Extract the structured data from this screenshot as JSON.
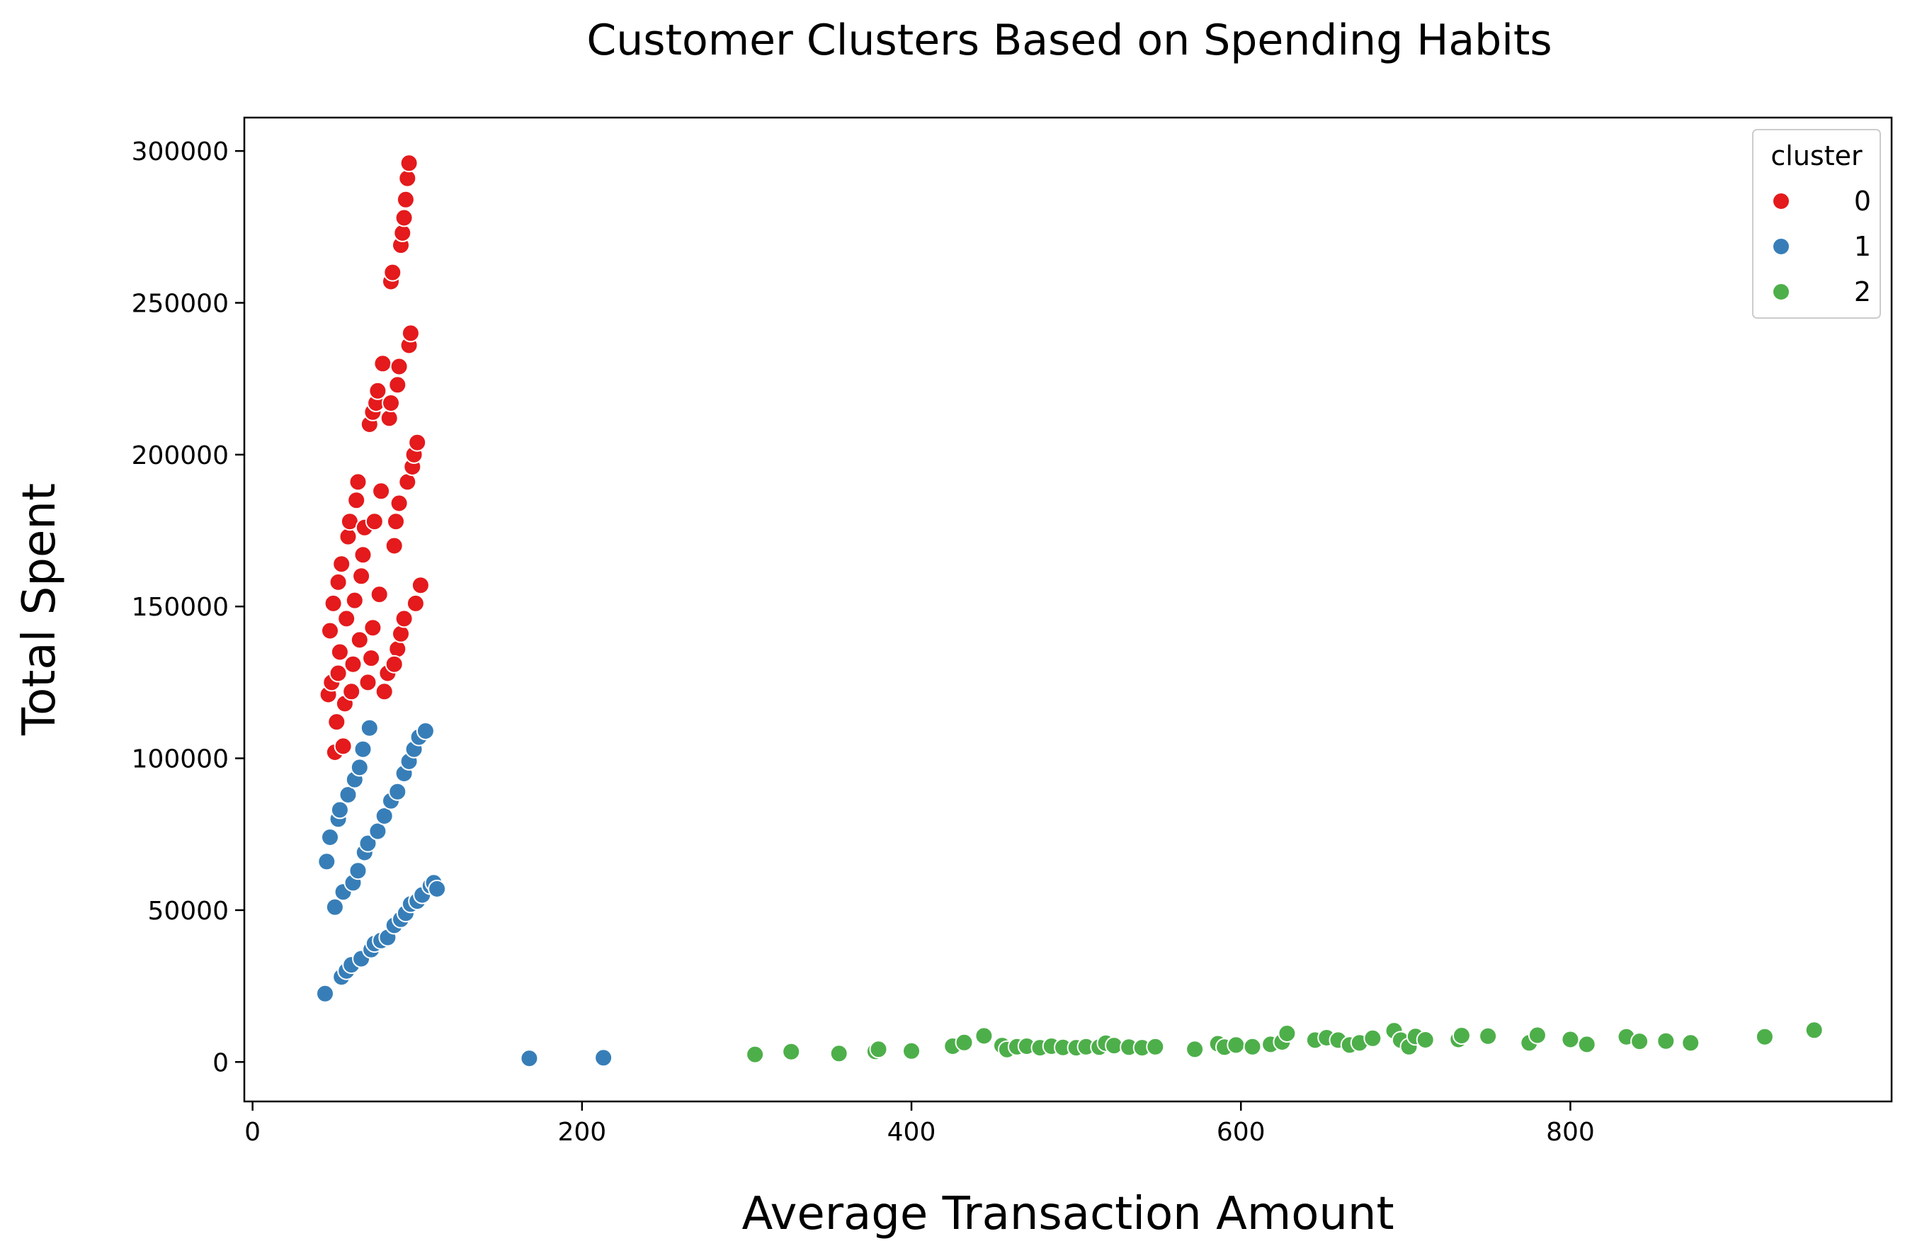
{
  "chart_data": {
    "type": "scatter",
    "title": "Customer Clusters Based on Spending Habits",
    "xlabel": "Average Transaction Amount",
    "ylabel": "Total Spent",
    "xlim": [
      -5,
      995
    ],
    "ylim": [
      -13000,
      311000
    ],
    "xticks": [
      0,
      200,
      400,
      600,
      800
    ],
    "yticks": [
      0,
      50000,
      100000,
      150000,
      200000,
      250000,
      300000
    ],
    "grid": false,
    "legend": {
      "title": "cluster",
      "placement": "top-right"
    },
    "series": [
      {
        "name": "0",
        "color": "#e41a1c",
        "points": [
          [
            46,
            121000
          ],
          [
            48,
            125000
          ],
          [
            47,
            142000
          ],
          [
            49,
            151000
          ],
          [
            50,
            102000
          ],
          [
            51,
            112000
          ],
          [
            52,
            128000
          ],
          [
            53,
            135000
          ],
          [
            52,
            158000
          ],
          [
            54,
            164000
          ],
          [
            55,
            104000
          ],
          [
            56,
            118000
          ],
          [
            57,
            146000
          ],
          [
            58,
            173000
          ],
          [
            59,
            178000
          ],
          [
            60,
            122000
          ],
          [
            61,
            131000
          ],
          [
            62,
            152000
          ],
          [
            63,
            185000
          ],
          [
            64,
            191000
          ],
          [
            65,
            139000
          ],
          [
            66,
            160000
          ],
          [
            67,
            167000
          ],
          [
            68,
            176000
          ],
          [
            70,
            125000
          ],
          [
            72,
            133000
          ],
          [
            73,
            143000
          ],
          [
            74,
            178000
          ],
          [
            71,
            210000
          ],
          [
            73,
            214000
          ],
          [
            75,
            217000
          ],
          [
            76,
            221000
          ],
          [
            77,
            154000
          ],
          [
            78,
            188000
          ],
          [
            79,
            230000
          ],
          [
            80,
            122000
          ],
          [
            82,
            128000
          ],
          [
            83,
            212000
          ],
          [
            84,
            257000
          ],
          [
            85,
            260000
          ],
          [
            86,
            170000
          ],
          [
            87,
            178000
          ],
          [
            88,
            223000
          ],
          [
            89,
            229000
          ],
          [
            90,
            269000
          ],
          [
            91,
            273000
          ],
          [
            92,
            278000
          ],
          [
            93,
            284000
          ],
          [
            94,
            291000
          ],
          [
            95,
            296000
          ],
          [
            88,
            136000
          ],
          [
            90,
            141000
          ],
          [
            92,
            146000
          ],
          [
            94,
            191000
          ],
          [
            95,
            236000
          ],
          [
            96,
            240000
          ],
          [
            97,
            196000
          ],
          [
            98,
            200000
          ],
          [
            99,
            151000
          ],
          [
            100,
            204000
          ],
          [
            102,
            157000
          ],
          [
            86,
            131000
          ],
          [
            84,
            217000
          ],
          [
            89,
            184000
          ]
        ]
      },
      {
        "name": "1",
        "color": "#377eb8",
        "points": [
          [
            44,
            22500
          ],
          [
            45,
            66000
          ],
          [
            47,
            74000
          ],
          [
            50,
            51000
          ],
          [
            52,
            80000
          ],
          [
            53,
            83000
          ],
          [
            54,
            28000
          ],
          [
            55,
            56000
          ],
          [
            57,
            30000
          ],
          [
            58,
            88000
          ],
          [
            60,
            32000
          ],
          [
            61,
            59000
          ],
          [
            62,
            93000
          ],
          [
            64,
            63000
          ],
          [
            65,
            97000
          ],
          [
            66,
            34000
          ],
          [
            67,
            103000
          ],
          [
            68,
            69000
          ],
          [
            70,
            72000
          ],
          [
            71,
            110000
          ],
          [
            72,
            37000
          ],
          [
            74,
            39000
          ],
          [
            76,
            76000
          ],
          [
            78,
            40000
          ],
          [
            80,
            81000
          ],
          [
            82,
            41000
          ],
          [
            84,
            86000
          ],
          [
            86,
            45000
          ],
          [
            88,
            89000
          ],
          [
            90,
            47000
          ],
          [
            92,
            95000
          ],
          [
            93,
            49000
          ],
          [
            95,
            99000
          ],
          [
            96,
            52000
          ],
          [
            98,
            103000
          ],
          [
            100,
            53000
          ],
          [
            101,
            107000
          ],
          [
            103,
            55000
          ],
          [
            105,
            109000
          ],
          [
            108,
            58000
          ],
          [
            110,
            59000
          ],
          [
            112,
            57000
          ],
          [
            168,
            1200
          ],
          [
            213,
            1400
          ]
        ]
      },
      {
        "name": "2",
        "color": "#4daf4a",
        "points": [
          [
            305,
            2500
          ],
          [
            327,
            3400
          ],
          [
            356,
            2800
          ],
          [
            378,
            3500
          ],
          [
            380,
            4200
          ],
          [
            400,
            3600
          ],
          [
            425,
            5200
          ],
          [
            432,
            6400
          ],
          [
            444,
            8600
          ],
          [
            455,
            5400
          ],
          [
            458,
            4100
          ],
          [
            464,
            5000
          ],
          [
            470,
            5200
          ],
          [
            478,
            4700
          ],
          [
            485,
            5200
          ],
          [
            492,
            4800
          ],
          [
            500,
            4700
          ],
          [
            506,
            5000
          ],
          [
            514,
            4900
          ],
          [
            518,
            6200
          ],
          [
            523,
            5400
          ],
          [
            532,
            4900
          ],
          [
            540,
            4700
          ],
          [
            548,
            5000
          ],
          [
            572,
            4200
          ],
          [
            586,
            6000
          ],
          [
            590,
            4900
          ],
          [
            597,
            5600
          ],
          [
            607,
            5000
          ],
          [
            618,
            5800
          ],
          [
            625,
            6600
          ],
          [
            628,
            9400
          ],
          [
            645,
            7200
          ],
          [
            652,
            8000
          ],
          [
            659,
            7200
          ],
          [
            666,
            5600
          ],
          [
            672,
            6300
          ],
          [
            680,
            7800
          ],
          [
            693,
            10300
          ],
          [
            697,
            7200
          ],
          [
            702,
            5000
          ],
          [
            706,
            8400
          ],
          [
            712,
            7300
          ],
          [
            732,
            7400
          ],
          [
            734,
            8700
          ],
          [
            750,
            8500
          ],
          [
            775,
            6300
          ],
          [
            780,
            8800
          ],
          [
            800,
            7400
          ],
          [
            810,
            5800
          ],
          [
            834,
            8300
          ],
          [
            842,
            6800
          ],
          [
            858,
            6900
          ],
          [
            873,
            6300
          ],
          [
            918,
            8300
          ],
          [
            948,
            10500
          ]
        ]
      }
    ]
  }
}
